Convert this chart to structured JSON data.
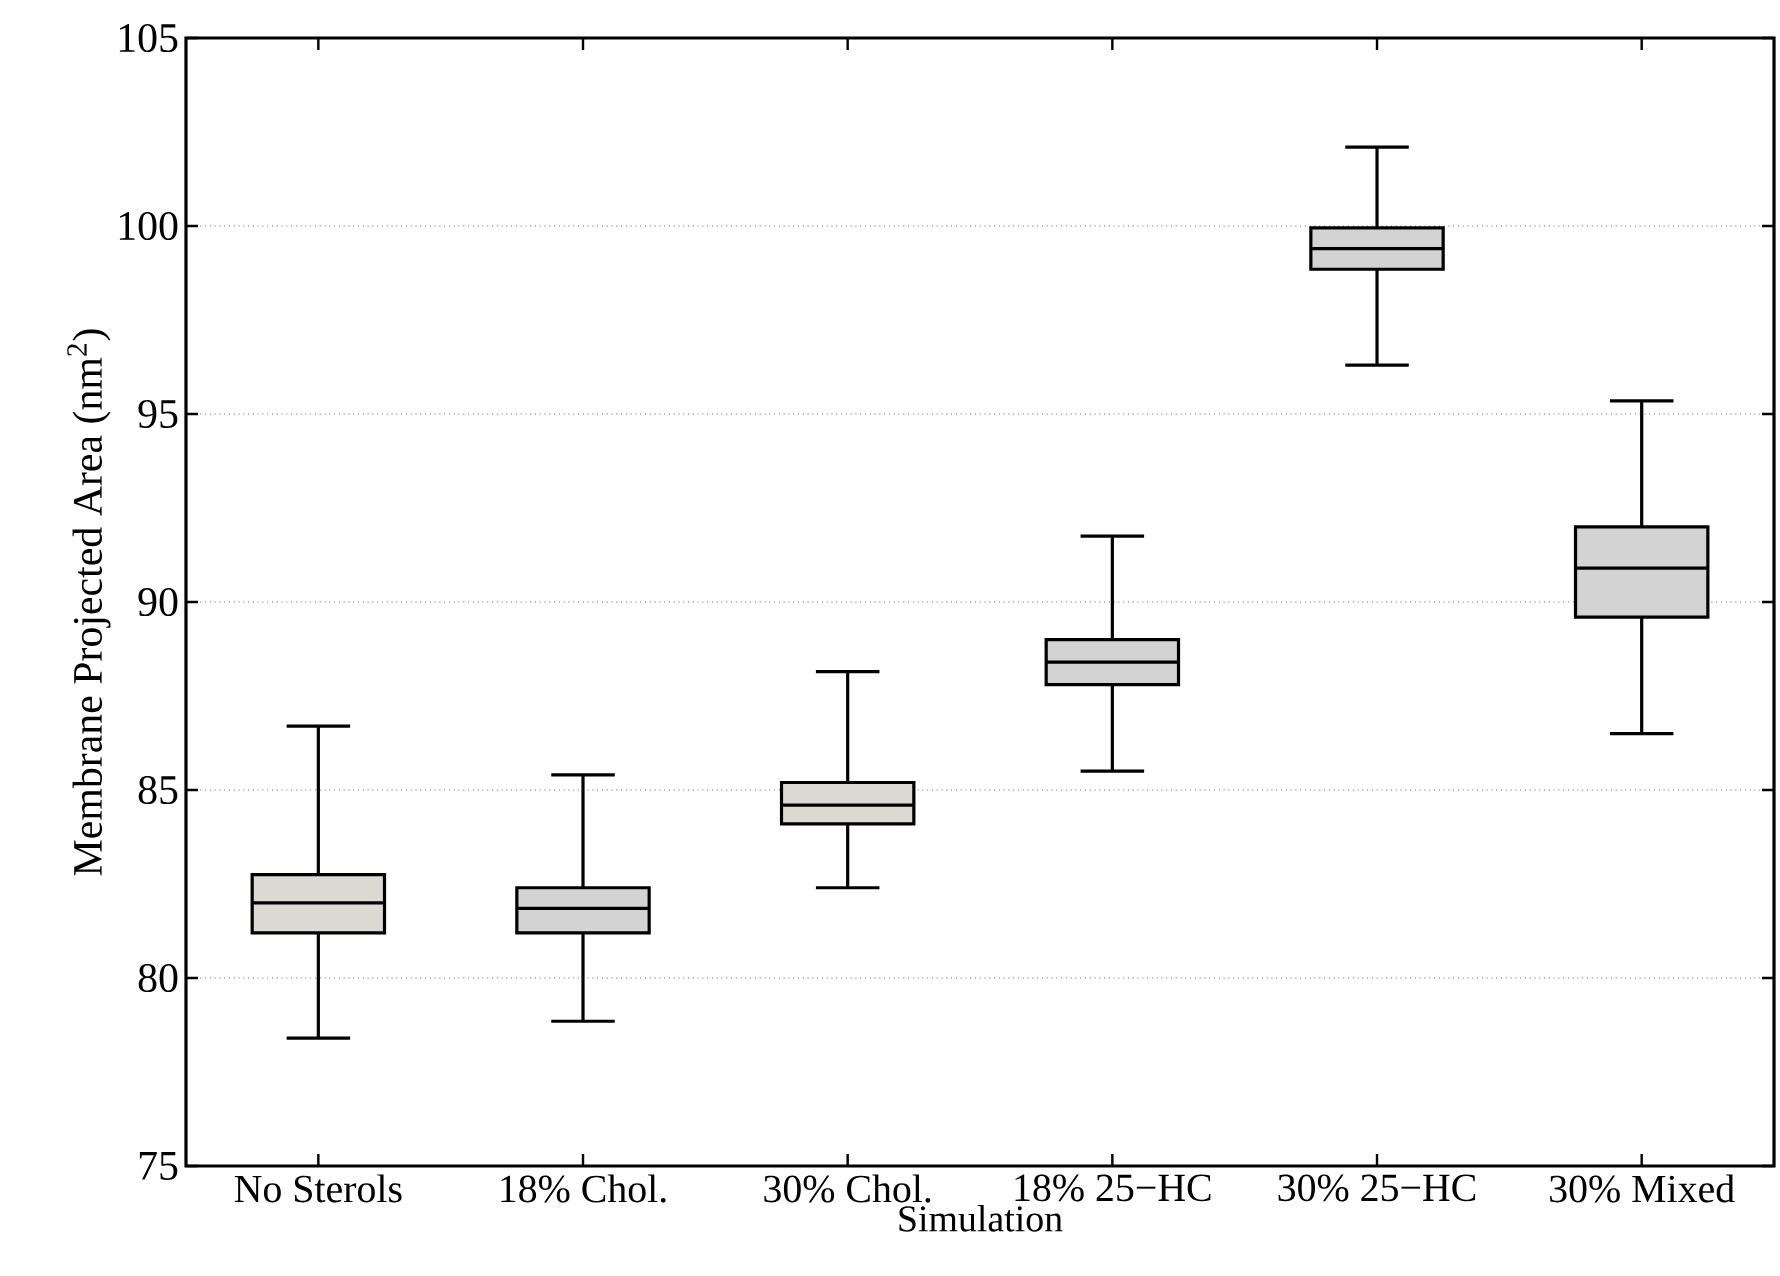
{
  "chart_data": {
    "type": "box",
    "xlabel": "Simulation",
    "ylabel": "Membrane Projected Area (nm$^{2}$)",
    "categories": [
      "No Sterols",
      "18% Chol.",
      "30% Chol.",
      "18% 25−HC",
      "30% 25−HC",
      "30% Mixed"
    ],
    "boxes": [
      {
        "low": 78.4,
        "q1": 81.2,
        "median": 82.0,
        "q3": 82.75,
        "high": 86.7
      },
      {
        "low": 78.85,
        "q1": 81.2,
        "median": 81.85,
        "q3": 82.4,
        "high": 85.4
      },
      {
        "low": 82.4,
        "q1": 84.1,
        "median": 84.6,
        "q3": 85.2,
        "high": 88.15
      },
      {
        "low": 85.5,
        "q1": 87.8,
        "median": 88.4,
        "q3": 89.0,
        "high": 91.75
      },
      {
        "low": 96.3,
        "q1": 98.85,
        "median": 99.4,
        "q3": 99.95,
        "high": 102.1
      },
      {
        "low": 86.5,
        "q1": 89.6,
        "median": 90.9,
        "q3": 92.0,
        "high": 95.35
      }
    ],
    "colors": [
      "#dcd9d3",
      "#d3d3d3",
      "#dcd9d3",
      "#d3d3d3",
      "#d3d3d3",
      "#d3d3d3"
    ],
    "ylim": [
      75,
      105
    ],
    "yticks": [
      75,
      80,
      85,
      90,
      95,
      100,
      105
    ],
    "grid": "y"
  }
}
